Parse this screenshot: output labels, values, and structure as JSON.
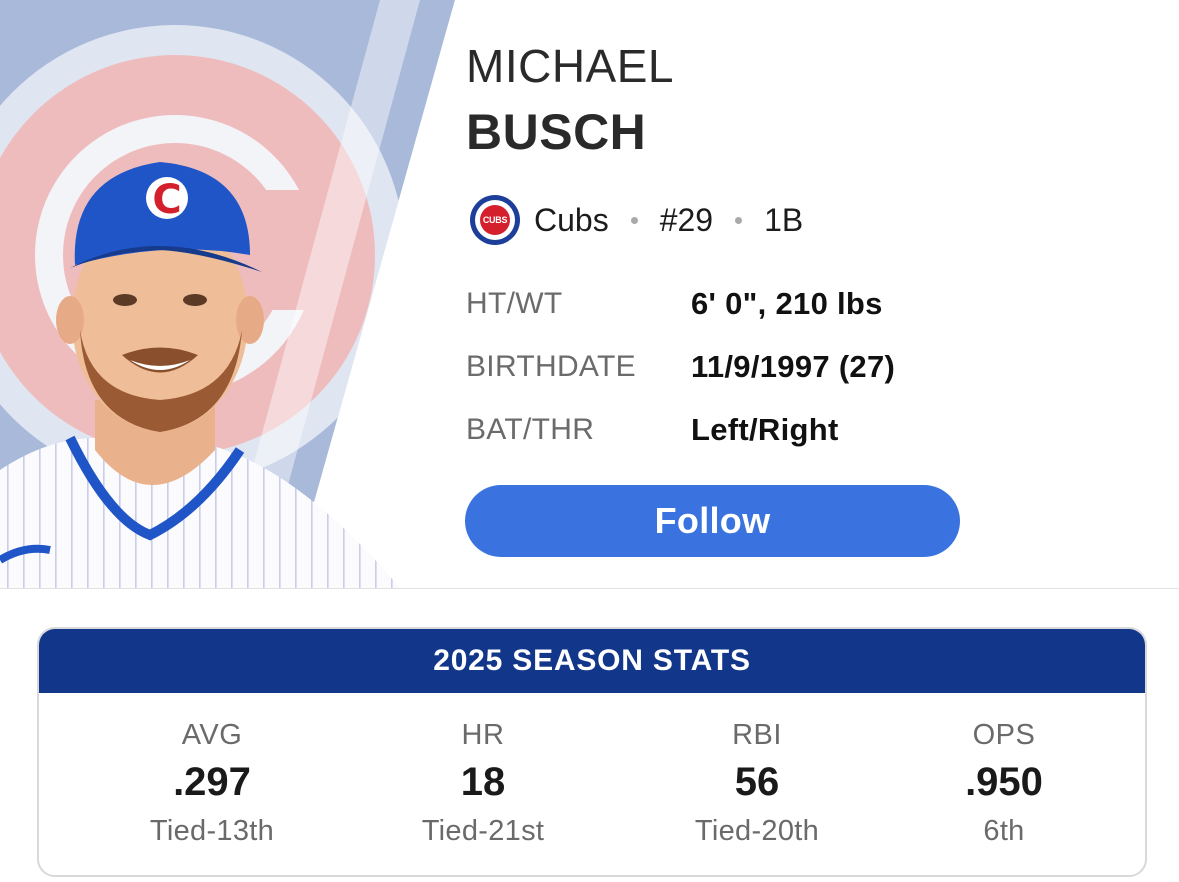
{
  "player": {
    "first_name": "MICHAEL",
    "last_name": "BUSCH",
    "team": "Cubs",
    "team_logo_text": "CUBS",
    "number": "#29",
    "position": "1B",
    "team_logo_icon": "cubs-logo-icon",
    "headshot": "player-headshot"
  },
  "bio": [
    {
      "label": "HT/WT",
      "value": "6' 0\", 210 lbs"
    },
    {
      "label": "BIRTHDATE",
      "value": "11/9/1997 (27)"
    },
    {
      "label": "BAT/THR",
      "value": "Left/Right"
    }
  ],
  "follow_button": {
    "label": "Follow"
  },
  "stats": {
    "title": "2025 SEASON STATS",
    "items": [
      {
        "label": "AVG",
        "value": ".297",
        "rank": "Tied-13th"
      },
      {
        "label": "HR",
        "value": "18",
        "rank": "Tied-21st"
      },
      {
        "label": "RBI",
        "value": "56",
        "rank": "Tied-20th"
      },
      {
        "label": "OPS",
        "value": ".950",
        "rank": "6th"
      }
    ]
  },
  "colors": {
    "follow_button": "#3a73df",
    "stats_header": "#12378a",
    "cubs_blue": "#1d3f9a",
    "cubs_red": "#d41f2d",
    "top_accent_red": "#d41a1a"
  }
}
